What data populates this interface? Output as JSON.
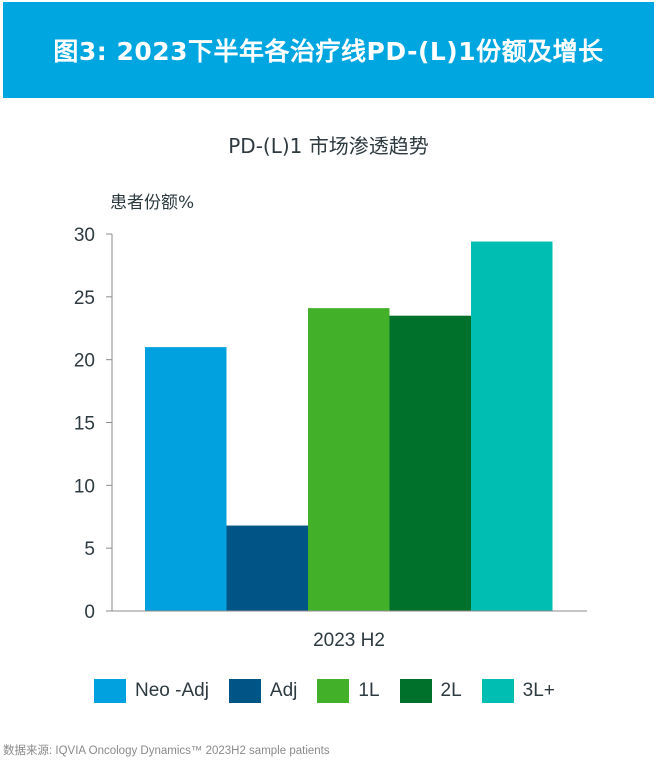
{
  "banner": {
    "title": "图3: 2023下半年各治疗线PD-(L)1份额及增长"
  },
  "source": "数据来源: IQVIA Oncology Dynamics™ 2023H2 sample patients",
  "chart_data": {
    "type": "bar",
    "title": "PD-(L)1 市场渗透趋势",
    "ylabel": "患者份额%",
    "xlabel": "",
    "categories": [
      "2023 H2"
    ],
    "ylim": [
      0,
      30
    ],
    "yticks": [
      0,
      5,
      10,
      15,
      20,
      25,
      30
    ],
    "grid": false,
    "legend_position": "bottom",
    "series": [
      {
        "name": "Neo -Adj",
        "values": [
          21.0
        ],
        "color": "#00a1de"
      },
      {
        "name": "Adj",
        "values": [
          6.8
        ],
        "color": "#005587"
      },
      {
        "name": "1L",
        "values": [
          24.1
        ],
        "color": "#43b02a"
      },
      {
        "name": "2L",
        "values": [
          23.5
        ],
        "color": "#00712a"
      },
      {
        "name": "3L+",
        "values": [
          29.4
        ],
        "color": "#00bfb2"
      }
    ]
  }
}
